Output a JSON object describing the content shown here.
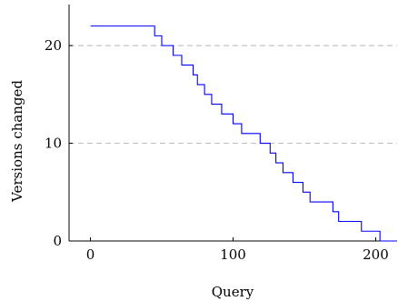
{
  "chart_data": {
    "type": "line",
    "xlabel": "Query",
    "ylabel": "Versions changed",
    "xlim": [
      -15,
      215
    ],
    "ylim": [
      0,
      24.2
    ],
    "xticks": [
      0,
      100,
      200
    ],
    "yticks": [
      0,
      10,
      20
    ],
    "grid": {
      "horizontal_dashed": true,
      "vertical": false
    },
    "series": [
      {
        "color": "#0000ff",
        "step": true,
        "x": [
          0,
          45,
          50,
          58,
          64,
          72,
          75,
          80,
          85,
          92,
          94,
          100,
          106,
          111,
          119,
          126,
          130,
          135,
          142,
          149,
          154,
          160,
          170,
          174,
          190,
          195,
          203,
          215
        ],
        "y": [
          22,
          21,
          20,
          19,
          18,
          17,
          16,
          15,
          14,
          13,
          13,
          12,
          11,
          11,
          10,
          9,
          8,
          7,
          6,
          5,
          4,
          4,
          3,
          2,
          1,
          1,
          0,
          0
        ]
      }
    ]
  }
}
